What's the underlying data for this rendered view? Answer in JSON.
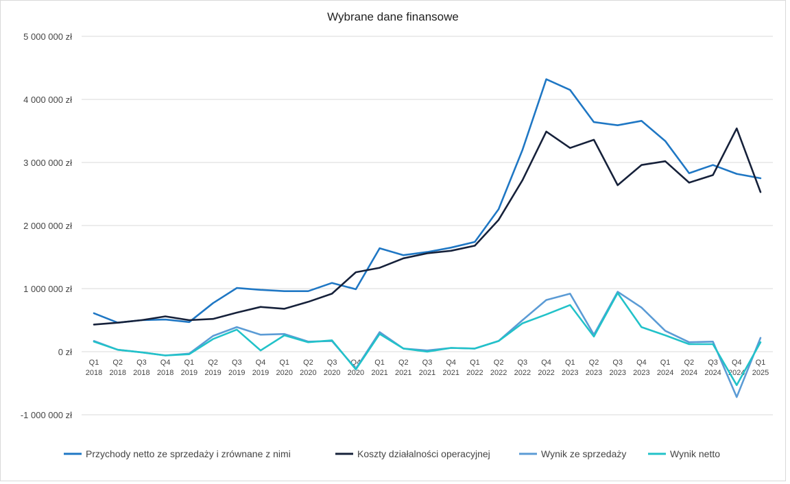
{
  "chart_data": {
    "type": "line",
    "title": "Wybrane dane finansowe",
    "xlabel": "",
    "ylabel": "",
    "ylim": [
      -1000000,
      5000000
    ],
    "yticks": [
      5000000,
      4000000,
      3000000,
      2000000,
      1000000,
      0,
      -1000000
    ],
    "ytick_labels": [
      "5 000 000 zł",
      "4 000 000 zł",
      "3 000 000 zł",
      "2 000 000 zł",
      "1 000 000 zł",
      "0 zł",
      "-1 000 000 zł"
    ],
    "grid": true,
    "legend_position": "bottom",
    "categories": [
      [
        "Q1",
        "2018"
      ],
      [
        "Q2",
        "2018"
      ],
      [
        "Q3",
        "2018"
      ],
      [
        "Q4",
        "2018"
      ],
      [
        "Q1",
        "2019"
      ],
      [
        "Q2",
        "2019"
      ],
      [
        "Q3",
        "2019"
      ],
      [
        "Q4",
        "2019"
      ],
      [
        "Q1",
        "2020"
      ],
      [
        "Q2",
        "2020"
      ],
      [
        "Q3",
        "2020"
      ],
      [
        "Q4",
        "2020"
      ],
      [
        "Q1",
        "2021"
      ],
      [
        "Q2",
        "2021"
      ],
      [
        "Q3",
        "2021"
      ],
      [
        "Q4",
        "2021"
      ],
      [
        "Q1",
        "2022"
      ],
      [
        "Q2",
        "2022"
      ],
      [
        "Q3",
        "2022"
      ],
      [
        "Q4",
        "2022"
      ],
      [
        "Q1",
        "2023"
      ],
      [
        "Q2",
        "2023"
      ],
      [
        "Q3",
        "2023"
      ],
      [
        "Q4",
        "2023"
      ],
      [
        "Q1",
        "2024"
      ],
      [
        "Q2",
        "2024"
      ],
      [
        "Q3",
        "2024"
      ],
      [
        "Q4",
        "2024"
      ],
      [
        "Q1",
        "2025"
      ]
    ],
    "series": [
      {
        "name": "Przychody netto ze sprzedaży i zrównane z nimi",
        "color": "#1f77c4",
        "values": [
          610000,
          460000,
          500000,
          510000,
          470000,
          770000,
          1010000,
          980000,
          960000,
          960000,
          1090000,
          990000,
          1640000,
          1530000,
          1580000,
          1650000,
          1740000,
          2260000,
          3200000,
          4320000,
          4150000,
          3640000,
          3590000,
          3660000,
          3340000,
          2830000,
          2960000,
          2820000,
          2750000
        ]
      },
      {
        "name": "Koszty działalności operacyjnej",
        "color": "#16213a",
        "values": [
          430000,
          460000,
          500000,
          560000,
          500000,
          520000,
          620000,
          710000,
          680000,
          790000,
          920000,
          1260000,
          1330000,
          1480000,
          1560000,
          1600000,
          1680000,
          2090000,
          2720000,
          3490000,
          3230000,
          3360000,
          2640000,
          2960000,
          3020000,
          2680000,
          2800000,
          3540000,
          2530000
        ]
      },
      {
        "name": "Wynik ze sprzedaży",
        "color": "#5b9bd5",
        "values": [
          170000,
          30000,
          -10000,
          -60000,
          -30000,
          250000,
          390000,
          270000,
          280000,
          160000,
          170000,
          -270000,
          310000,
          50000,
          20000,
          60000,
          50000,
          170000,
          500000,
          820000,
          920000,
          270000,
          950000,
          700000,
          330000,
          150000,
          160000,
          -720000,
          220000
        ]
      },
      {
        "name": "Wynik netto",
        "color": "#22c2c9",
        "values": [
          160000,
          30000,
          -10000,
          -60000,
          -40000,
          200000,
          350000,
          20000,
          260000,
          150000,
          180000,
          -280000,
          280000,
          50000,
          0,
          60000,
          50000,
          170000,
          450000,
          590000,
          740000,
          240000,
          930000,
          390000,
          260000,
          120000,
          120000,
          -530000,
          150000
        ]
      }
    ]
  }
}
